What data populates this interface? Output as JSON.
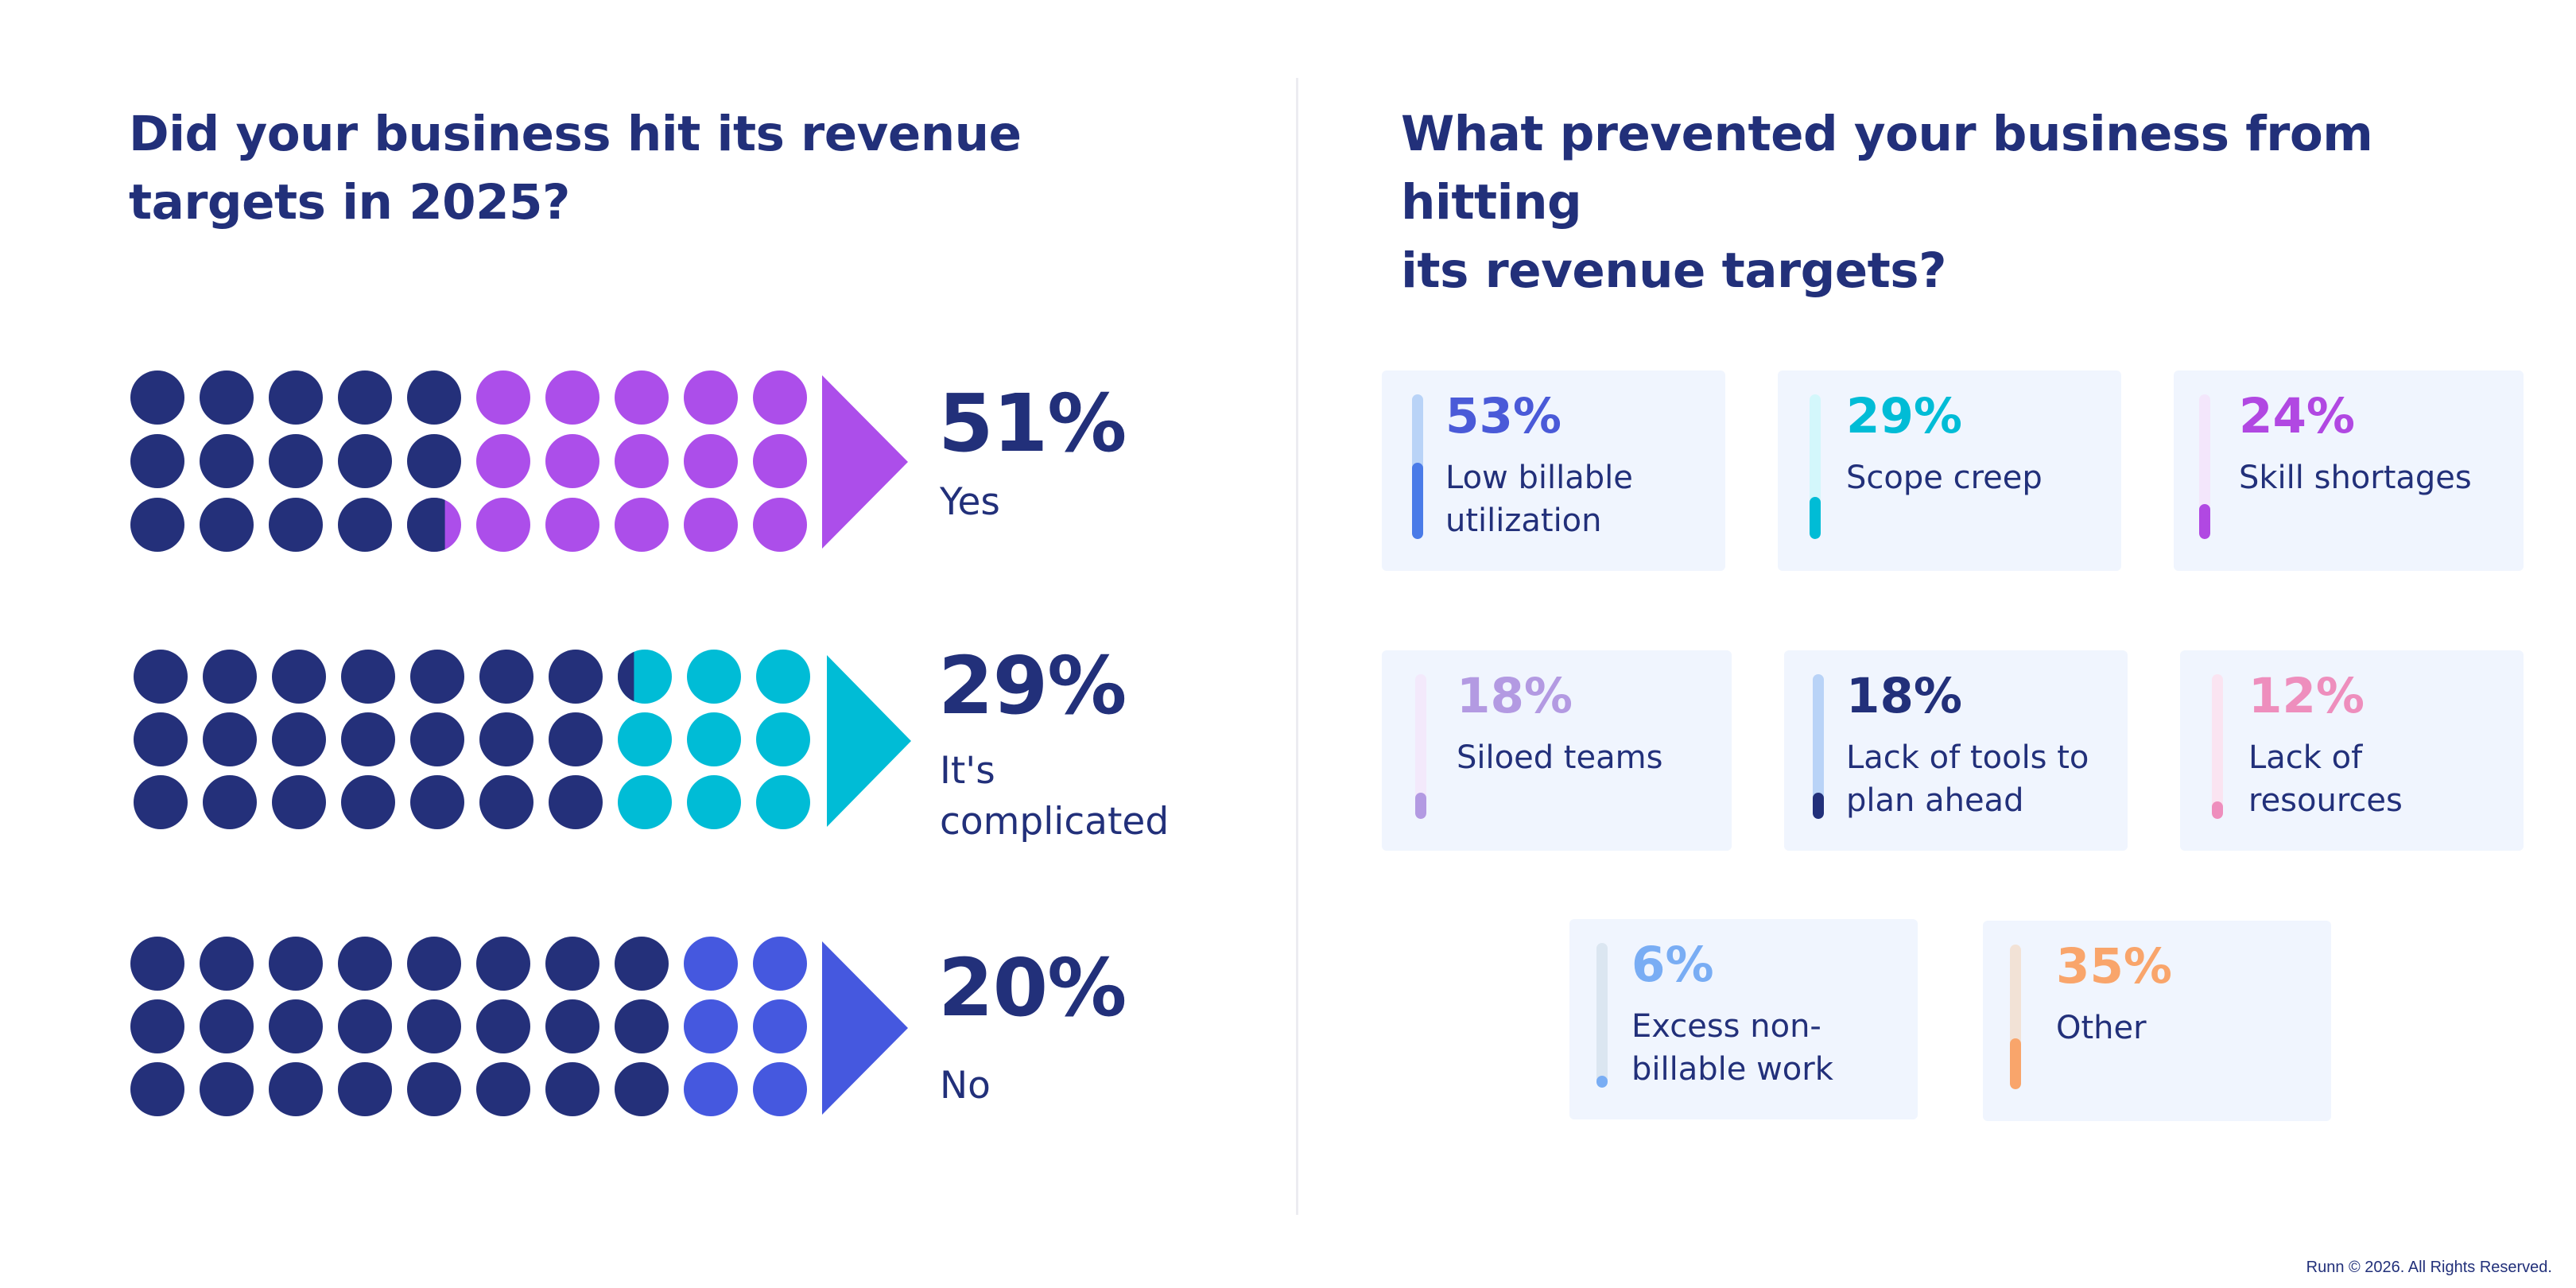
{
  "left_title": "Did your business hit its revenue\ntargets in 2025?",
  "right_title": "What prevented your business from hitting\nits revenue targets?",
  "footer": "Runn © 2026. All Rights Reserved.",
  "chart_data": [
    {
      "type": "waffle",
      "title": "Did your business hit its revenue targets in 2025?",
      "grid": {
        "rows": 3,
        "cols": 10,
        "units": 30
      },
      "base_color": "#24307a",
      "categories": [
        {
          "label": "Yes",
          "percent": "51%",
          "value": 51,
          "color": "#ac4eea"
        },
        {
          "label": "It's\ncomplicated",
          "percent": "29%",
          "value": 29,
          "color": "#00bcd6"
        },
        {
          "label": "No",
          "percent": "20%",
          "value": 20,
          "color": "#4558df"
        }
      ]
    },
    {
      "type": "bar",
      "title": "What prevented your business from hitting its revenue targets?",
      "items": [
        {
          "label": "Low billable\nutilization",
          "percent": "53%",
          "value": 53,
          "color": "#4a7be8",
          "track": "#b9d3f7",
          "text_color": "#4a5ad8"
        },
        {
          "label": "Scope creep",
          "percent": "29%",
          "value": 29,
          "color": "#00bcd6",
          "track": "#d3f7fb",
          "text_color": "#00bcd6"
        },
        {
          "label": "Skill shortages",
          "percent": "24%",
          "value": 24,
          "color": "#b148e2",
          "track": "#f3e6fb",
          "text_color": "#b148e2"
        },
        {
          "label": "Siloed teams",
          "percent": "18%",
          "value": 18,
          "color": "#b39ae2",
          "track": "#f3e9fb",
          "text_color": "#b39ae2"
        },
        {
          "label": "Lack of tools to\nplan ahead",
          "percent": "18%",
          "value": 18,
          "color": "#22307a",
          "track": "#b9d3f7",
          "text_color": "#22307a"
        },
        {
          "label": "Lack of resources",
          "percent": "12%",
          "value": 12,
          "color": "#ee8ebd",
          "track": "#fae4f1",
          "text_color": "#ee8ebd"
        },
        {
          "label": "Excess non-\nbillable work",
          "percent": "6%",
          "value": 6,
          "color": "#79adf4",
          "track": "#dbe6f1",
          "text_color": "#79adf4"
        },
        {
          "label": "Other",
          "percent": "35%",
          "value": 35,
          "color": "#f9a56b",
          "track": "#f2e2d6",
          "text_color": "#f9a56b"
        }
      ]
    }
  ]
}
